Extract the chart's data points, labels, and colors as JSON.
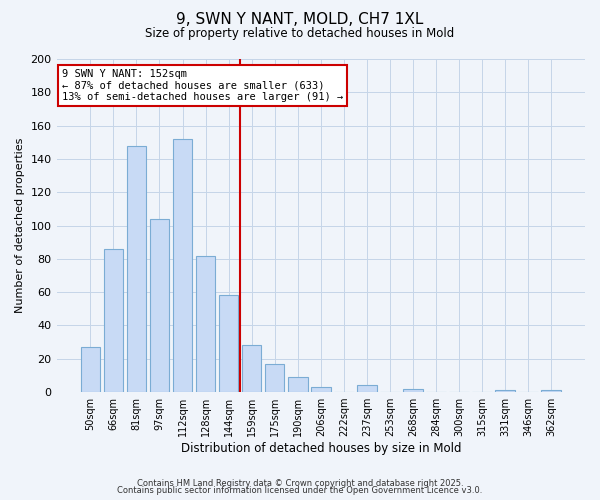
{
  "title": "9, SWN Y NANT, MOLD, CH7 1XL",
  "subtitle": "Size of property relative to detached houses in Mold",
  "xlabel": "Distribution of detached houses by size in Mold",
  "ylabel": "Number of detached properties",
  "categories": [
    "50sqm",
    "66sqm",
    "81sqm",
    "97sqm",
    "112sqm",
    "128sqm",
    "144sqm",
    "159sqm",
    "175sqm",
    "190sqm",
    "206sqm",
    "222sqm",
    "237sqm",
    "253sqm",
    "268sqm",
    "284sqm",
    "300sqm",
    "315sqm",
    "331sqm",
    "346sqm",
    "362sqm"
  ],
  "values": [
    27,
    86,
    148,
    104,
    152,
    82,
    58,
    28,
    17,
    9,
    3,
    0,
    4,
    0,
    2,
    0,
    0,
    0,
    1,
    0,
    1
  ],
  "bar_color": "#c8daf5",
  "bar_edge_color": "#7bacd4",
  "vline_color": "#cc0000",
  "vline_index": 7,
  "annotation_title": "9 SWN Y NANT: 152sqm",
  "annotation_line1": "← 87% of detached houses are smaller (633)",
  "annotation_line2": "13% of semi-detached houses are larger (91) →",
  "ylim": [
    0,
    200
  ],
  "yticks": [
    0,
    20,
    40,
    60,
    80,
    100,
    120,
    140,
    160,
    180,
    200
  ],
  "background_color": "#f0f4fa",
  "grid_color": "#c5d5e8",
  "footer_line1": "Contains HM Land Registry data © Crown copyright and database right 2025.",
  "footer_line2": "Contains public sector information licensed under the Open Government Licence v3.0."
}
